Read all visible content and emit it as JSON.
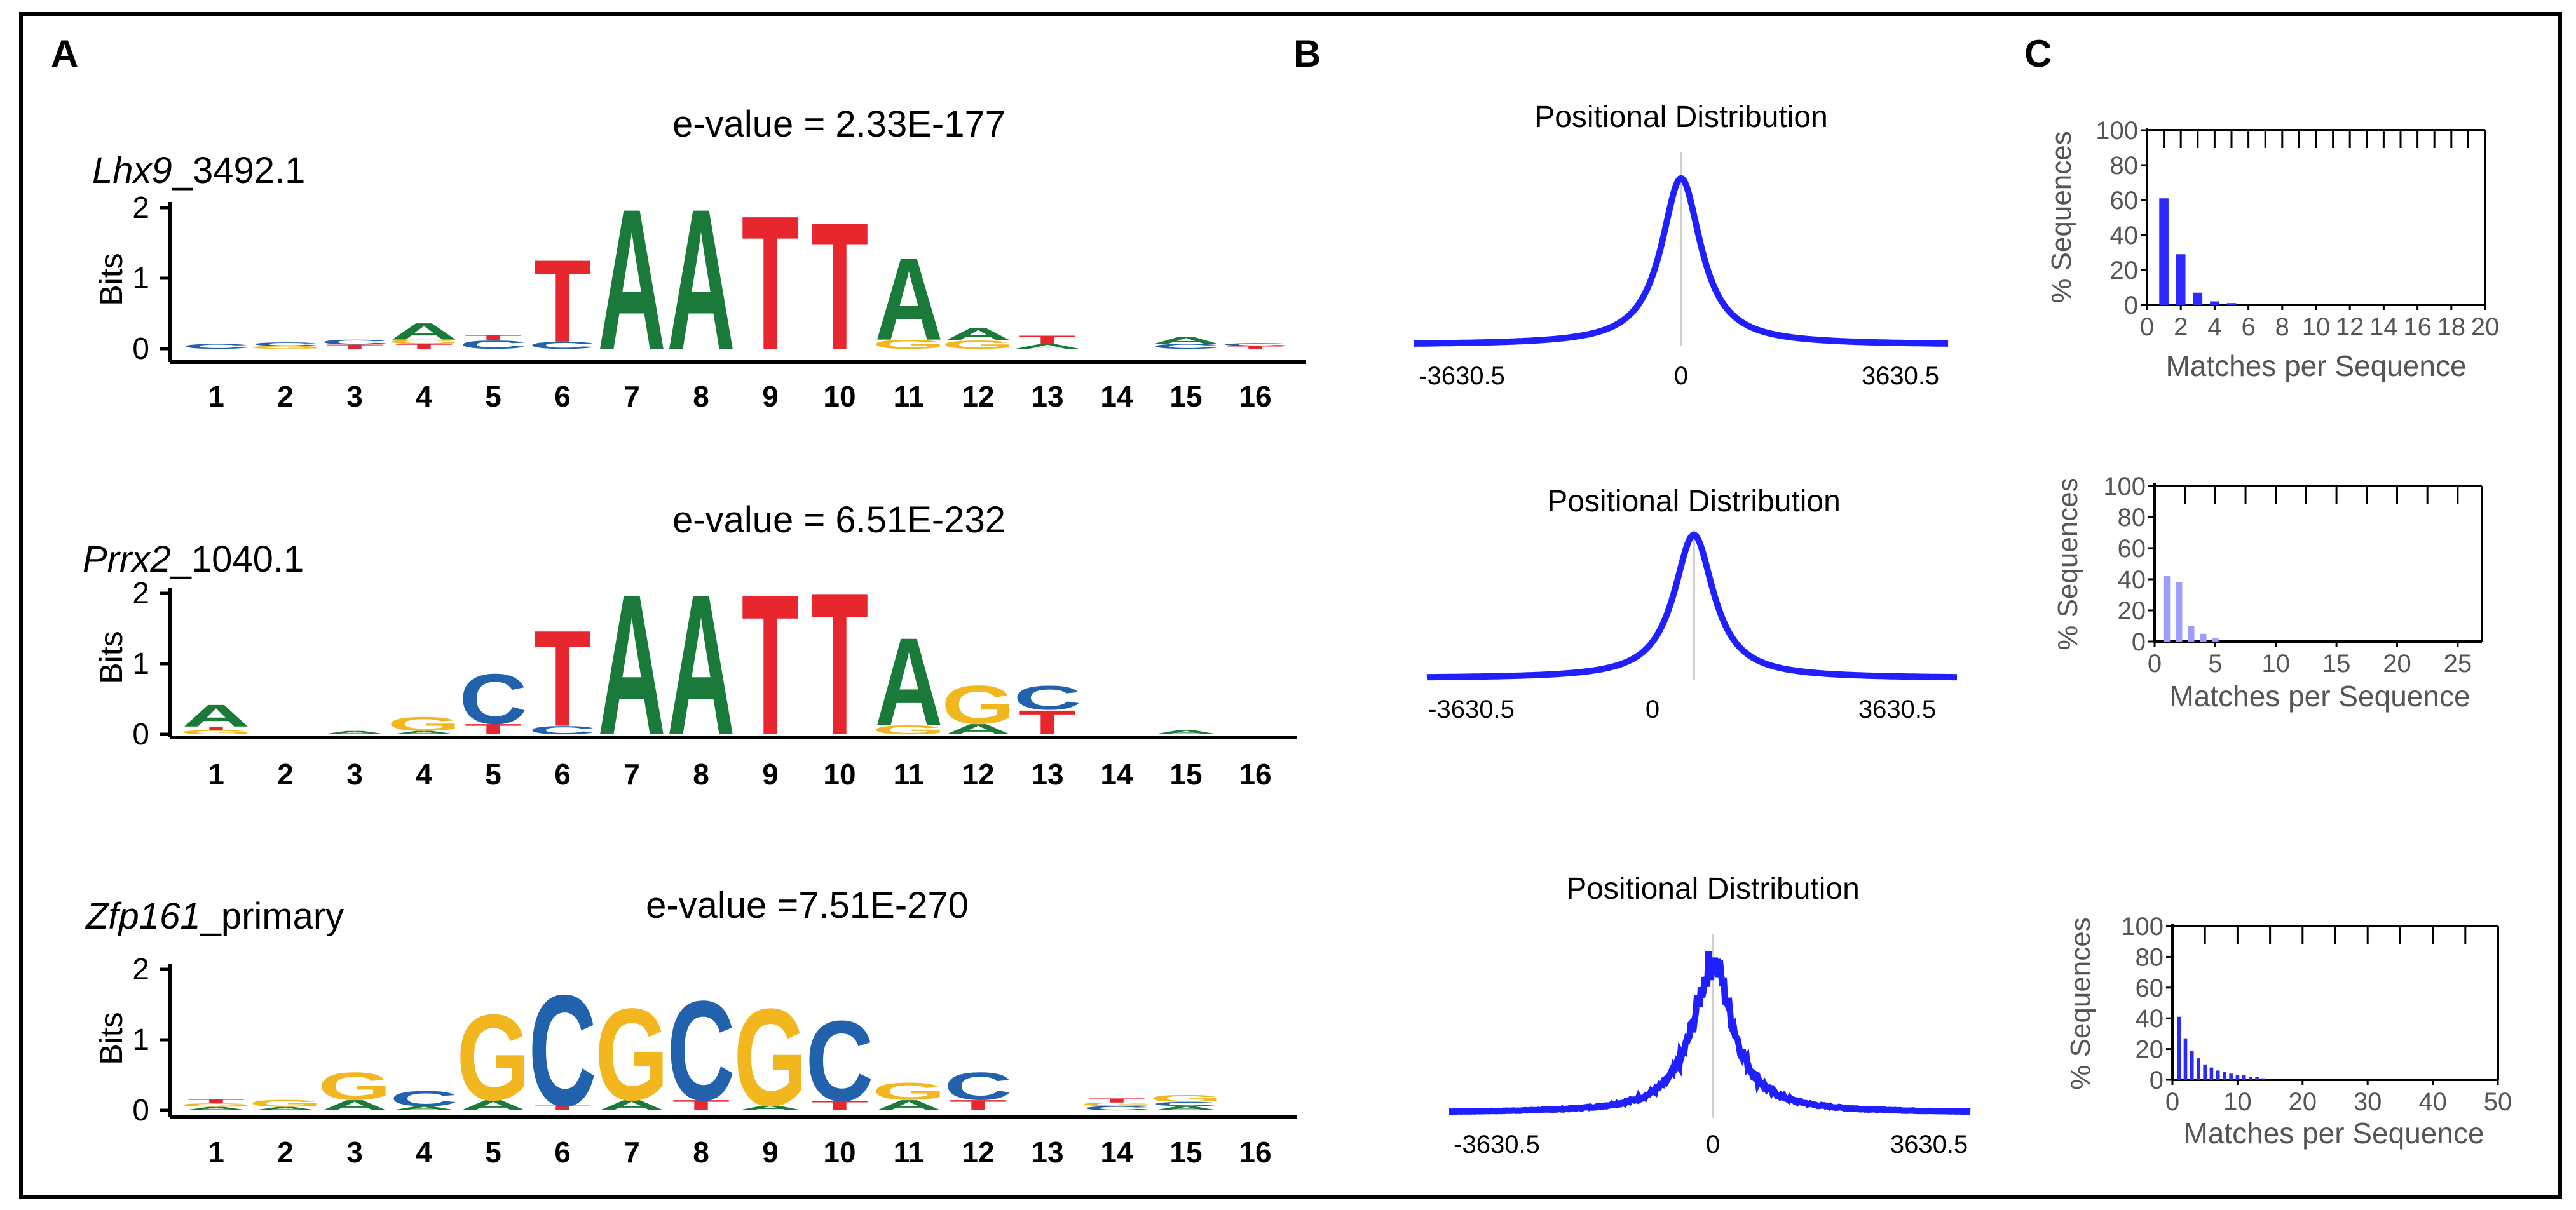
{
  "figure": {
    "panel_labels": {
      "a": "A",
      "b": "B",
      "c": "C"
    }
  },
  "colors": {
    "A": "#1a7a3a",
    "C": "#2262ad",
    "G": "#f2b61e",
    "T": "#e8262d",
    "blue_line": "#1f1fff",
    "bar": "#2a2aff",
    "bar_light": "#9d9dff",
    "axis": "#000000",
    "border": "#000000"
  },
  "panel_a": {
    "ylabel": "Bits",
    "yticks": [
      "2",
      "1",
      "0"
    ],
    "xticks": [
      "1",
      "2",
      "3",
      "4",
      "5",
      "6",
      "7",
      "8",
      "9",
      "10",
      "11",
      "12",
      "13",
      "14",
      "15",
      "16"
    ],
    "logos": [
      {
        "gene_italic": "Lhx9",
        "gene_suffix": "_3492.1",
        "evalue": "e-value = 2.33E-177",
        "columns": [
          [
            [
              "C",
              0.07
            ]
          ],
          [
            [
              "G",
              0.04
            ],
            [
              "C",
              0.05
            ]
          ],
          [
            [
              "T",
              0.06
            ],
            [
              "C",
              0.07
            ]
          ],
          [
            [
              "T",
              0.07
            ],
            [
              "G",
              0.06
            ],
            [
              "A",
              0.24
            ]
          ],
          [
            [
              "C",
              0.12
            ],
            [
              "T",
              0.08
            ]
          ],
          [
            [
              "C",
              0.1
            ],
            [
              "T",
              1.2
            ]
          ],
          [
            [
              "A",
              2.05
            ]
          ],
          [
            [
              "A",
              2.05
            ]
          ],
          [
            [
              "T",
              1.95
            ]
          ],
          [
            [
              "T",
              1.85
            ]
          ],
          [
            [
              "G",
              0.13
            ],
            [
              "A",
              1.2
            ]
          ],
          [
            [
              "G",
              0.12
            ],
            [
              "A",
              0.18
            ]
          ],
          [
            [
              "A",
              0.07
            ],
            [
              "T",
              0.12
            ]
          ],
          [],
          [
            [
              "C",
              0.07
            ],
            [
              "A",
              0.1
            ]
          ],
          [
            [
              "T",
              0.04
            ],
            [
              "C",
              0.04
            ]
          ]
        ]
      },
      {
        "gene_italic": "Prrx2",
        "gene_suffix": "_1040.1",
        "evalue": "e-value = 6.51E-232",
        "columns": [
          [
            [
              "G",
              0.06
            ],
            [
              "T",
              0.05
            ],
            [
              "A",
              0.32
            ]
          ],
          [],
          [
            [
              "A",
              0.05
            ]
          ],
          [
            [
              "A",
              0.05
            ],
            [
              "G",
              0.2
            ]
          ],
          [
            [
              "T",
              0.15
            ],
            [
              "C",
              0.73
            ]
          ],
          [
            [
              "C",
              0.12
            ],
            [
              "T",
              1.4
            ]
          ],
          [
            [
              "A",
              2.05
            ]
          ],
          [
            [
              "A",
              2.05
            ]
          ],
          [
            [
              "T",
              2.05
            ]
          ],
          [
            [
              "T",
              2.08
            ]
          ],
          [
            [
              "G",
              0.13
            ],
            [
              "A",
              1.28
            ]
          ],
          [
            [
              "A",
              0.15
            ],
            [
              "G",
              0.56
            ]
          ],
          [
            [
              "T",
              0.35
            ],
            [
              "C",
              0.35
            ]
          ],
          [],
          [
            [
              "A",
              0.06
            ]
          ],
          []
        ]
      },
      {
        "gene_italic": "Zfp161",
        "gene_suffix": "_primary",
        "evalue": "e-value =7.51E-270",
        "columns": [
          [
            [
              "A",
              0.05
            ],
            [
              "G",
              0.05
            ],
            [
              "T",
              0.06
            ]
          ],
          [
            [
              "A",
              0.05
            ],
            [
              "G",
              0.1
            ]
          ],
          [
            [
              "A",
              0.15
            ],
            [
              "G",
              0.4
            ]
          ],
          [
            [
              "A",
              0.06
            ],
            [
              "C",
              0.22
            ]
          ],
          [
            [
              "A",
              0.15
            ],
            [
              "G",
              1.25
            ]
          ],
          [
            [
              "T",
              0.07
            ],
            [
              "C",
              1.62
            ]
          ],
          [
            [
              "A",
              0.15
            ],
            [
              "G",
              1.34
            ]
          ],
          [
            [
              "T",
              0.15
            ],
            [
              "C",
              1.45
            ]
          ],
          [
            [
              "A",
              0.07
            ],
            [
              "G",
              1.42
            ]
          ],
          [
            [
              "T",
              0.14
            ],
            [
              "C",
              1.17
            ]
          ],
          [
            [
              "A",
              0.15
            ],
            [
              "G",
              0.25
            ]
          ],
          [
            [
              "T",
              0.15
            ],
            [
              "C",
              0.4
            ]
          ],
          [],
          [
            [
              "C",
              0.06
            ],
            [
              "G",
              0.05
            ],
            [
              "T",
              0.06
            ]
          ],
          [
            [
              "A",
              0.06
            ],
            [
              "C",
              0.06
            ],
            [
              "G",
              0.1
            ]
          ],
          []
        ]
      }
    ]
  },
  "panel_b": {
    "plots": [
      {
        "title": "Positional  Distribution",
        "xmin": "-3630.5",
        "xmid": "0",
        "xmax": "3630.5",
        "peak": 0.88,
        "noisy": false
      },
      {
        "title": "Positional  Distribution",
        "xmin": "-3630.5",
        "xmid": "0",
        "xmax": "3630.5",
        "peak": 0.93,
        "noisy": false
      },
      {
        "title": "Positional  Distribution",
        "xmin": "-3630.5",
        "xmid": "0",
        "xmax": "3630.5",
        "peak": 0.84,
        "noisy": true
      }
    ]
  },
  "panel_c": {
    "ylabel": "% Sequences",
    "xlabel": "Matches per Sequence",
    "yticks": [
      "100",
      "80",
      "60",
      "40",
      "20",
      "0"
    ],
    "plots": [
      {
        "xmax": 20,
        "xticks": [
          "0",
          "2",
          "4",
          "6",
          "8",
          "10",
          "12",
          "14",
          "16",
          "18",
          "20"
        ],
        "bars": [
          [
            1,
            61,
            "dark"
          ],
          [
            2,
            29,
            "dark"
          ],
          [
            3,
            7,
            "dark"
          ],
          [
            4,
            2,
            "dark"
          ],
          [
            5,
            1,
            "dark"
          ]
        ]
      },
      {
        "xmax": 27,
        "xticks": [
          "0",
          "5",
          "10",
          "15",
          "20",
          "25"
        ],
        "bars": [
          [
            1,
            42,
            "light"
          ],
          [
            2,
            38,
            "light"
          ],
          [
            3,
            10,
            "light"
          ],
          [
            4,
            5,
            "light"
          ],
          [
            5,
            2,
            "light"
          ]
        ]
      },
      {
        "xmax": 50,
        "xticks": [
          "0",
          "10",
          "20",
          "30",
          "40",
          "50"
        ],
        "bars": [
          [
            1,
            41,
            "dark"
          ],
          [
            2,
            27,
            "dark"
          ],
          [
            3,
            19,
            "dark"
          ],
          [
            4,
            14,
            "dark"
          ],
          [
            5,
            10,
            "dark"
          ],
          [
            6,
            8,
            "dark"
          ],
          [
            7,
            6,
            "dark"
          ],
          [
            8,
            5,
            "dark"
          ],
          [
            9,
            4,
            "dark"
          ],
          [
            10,
            3,
            "dark"
          ],
          [
            11,
            3,
            "dark"
          ],
          [
            12,
            2,
            "dark"
          ],
          [
            13,
            2,
            "dark"
          ],
          [
            14,
            1,
            "dark"
          ]
        ]
      }
    ]
  }
}
